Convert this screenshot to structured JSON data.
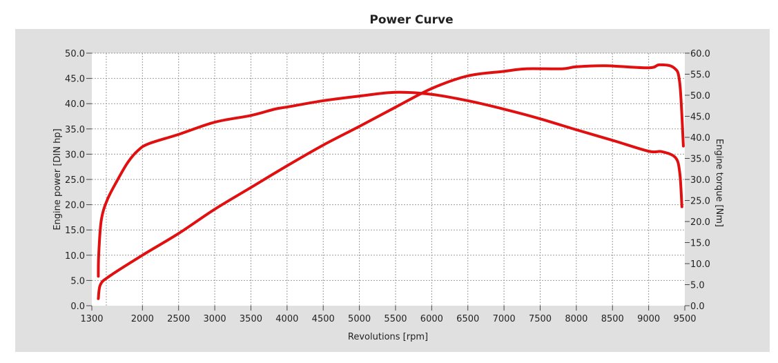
{
  "chart_data": {
    "type": "line",
    "title": "Power Curve",
    "xlabel": "Revolutions [rpm]",
    "ylabel": "Engine power [DIN hp]",
    "ylabel_right": "Engine torque [Nm]",
    "xlim": [
      1300,
      9500
    ],
    "ylim": [
      0,
      50
    ],
    "ylim_right": [
      0,
      60
    ],
    "x_ticks": [
      1300,
      2000,
      2500,
      3000,
      3500,
      4000,
      4500,
      5000,
      5500,
      6000,
      6500,
      7000,
      7500,
      8000,
      8500,
      9000,
      9500
    ],
    "x_tick_labels": [
      "1300",
      "2000",
      "2500",
      "3000",
      "3500",
      "4000",
      "4500",
      "5000",
      "5500",
      "6000",
      "6500",
      "7000",
      "7500",
      "8000",
      "8500",
      "9000",
      "9500"
    ],
    "x_grid": [
      1500,
      2000,
      2500,
      3000,
      3500,
      4000,
      4500,
      5000,
      5500,
      6000,
      6500,
      7000,
      7500,
      8000,
      8500,
      9000
    ],
    "y_tick_labels": [
      "0.0",
      "5.0",
      "10.0",
      "15.0",
      "20.0",
      "25.0",
      "30.0",
      "35.0",
      "40.0",
      "45.0",
      "50.0"
    ],
    "y_right_tick_labels": [
      "0.0",
      "5.0",
      "10.0",
      "15.0",
      "20.0",
      "25.0",
      "30.0",
      "35.0",
      "40.0",
      "45.0",
      "50.0",
      "55.0",
      "60.0"
    ],
    "grid": true,
    "color": "#e01010",
    "series": [
      {
        "name": "Engine power",
        "axis": "left",
        "x": [
          1390,
          1420,
          1550,
          2000,
          2500,
          3000,
          3500,
          4000,
          4500,
          5000,
          5500,
          6000,
          6500,
          7000,
          7300,
          7800,
          8000,
          8400,
          9000,
          9150,
          9350,
          9430,
          9480
        ],
        "y": [
          1.4,
          4.2,
          5.9,
          10.0,
          14.3,
          19.1,
          23.4,
          27.7,
          31.8,
          35.5,
          39.3,
          43.0,
          45.5,
          46.4,
          46.9,
          46.9,
          47.3,
          47.5,
          47.1,
          47.7,
          47.1,
          44.1,
          31.6
        ]
      },
      {
        "name": "Engine torque",
        "axis": "right",
        "x": [
          1390,
          1395,
          1430,
          1510,
          1650,
          1800,
          1940,
          2090,
          2500,
          3000,
          3500,
          3830,
          4000,
          4500,
          5000,
          5500,
          6000,
          6500,
          7000,
          7500,
          8000,
          8500,
          9000,
          9180,
          9370,
          9430,
          9460
        ],
        "y": [
          7.0,
          12.0,
          20.2,
          25.0,
          29.7,
          34.1,
          36.9,
          38.5,
          40.7,
          43.6,
          45.2,
          46.7,
          47.2,
          48.7,
          49.8,
          50.7,
          50.2,
          48.7,
          46.7,
          44.4,
          41.8,
          39.3,
          36.7,
          36.6,
          35.2,
          31.6,
          23.5
        ]
      }
    ]
  }
}
